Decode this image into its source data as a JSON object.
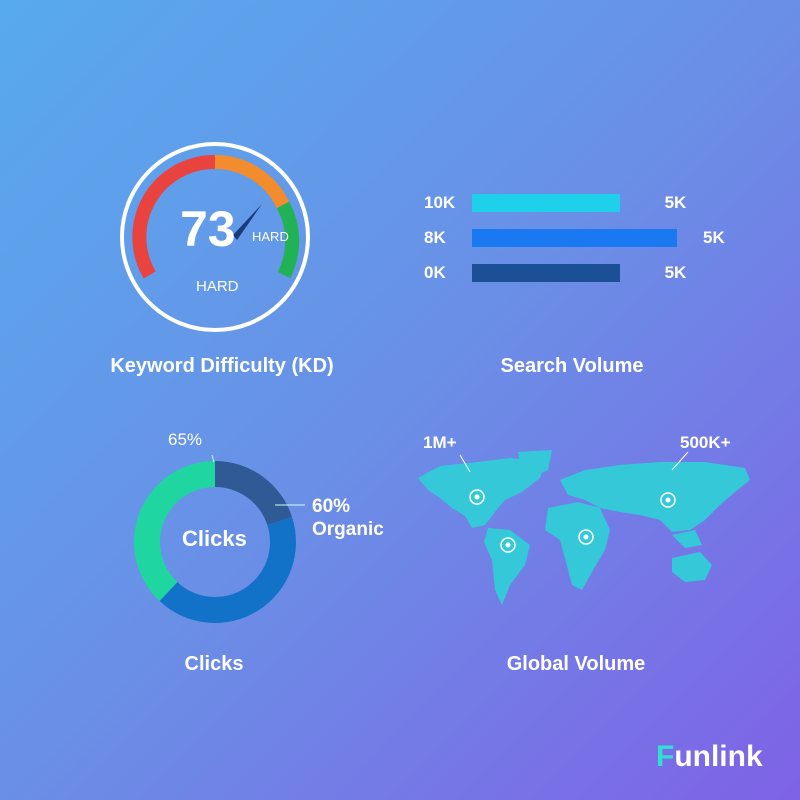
{
  "keyword_difficulty": {
    "title": "Keyword Difficulty (KD)",
    "value": "73",
    "value_label": "HARD",
    "level_label": "HARD",
    "colors": {
      "easy": "#e8433f",
      "medium": "#f28c2c",
      "hard": "#22b256",
      "needle": "#1d3a7a"
    }
  },
  "search_volume": {
    "title": "Search Volume",
    "bars": [
      {
        "left_label": "10K",
        "right_label": "5K",
        "fill": 0.72,
        "color": "#1fd0ea"
      },
      {
        "left_label": "8K",
        "right_label": "5K",
        "fill": 1.0,
        "color": "#1a78f0"
      },
      {
        "left_label": "0K",
        "right_label": "5K",
        "fill": 0.72,
        "color": "#1b4f96"
      }
    ]
  },
  "clicks": {
    "title": "Clicks",
    "center_label": "Clicks",
    "top_label": "65%",
    "side_label_value": "60%",
    "side_label_text": "Organic",
    "segments": [
      {
        "share": 0.2,
        "color": "#2f5a96"
      },
      {
        "share": 0.42,
        "color": "#1272c8"
      },
      {
        "share": 0.38,
        "color": "#1fd6a0"
      }
    ]
  },
  "global_volume": {
    "title": "Global Volume",
    "labels": [
      "1M+",
      "500K+"
    ],
    "map_color": "#35c8d8"
  },
  "brand": {
    "name": "Funlink"
  }
}
